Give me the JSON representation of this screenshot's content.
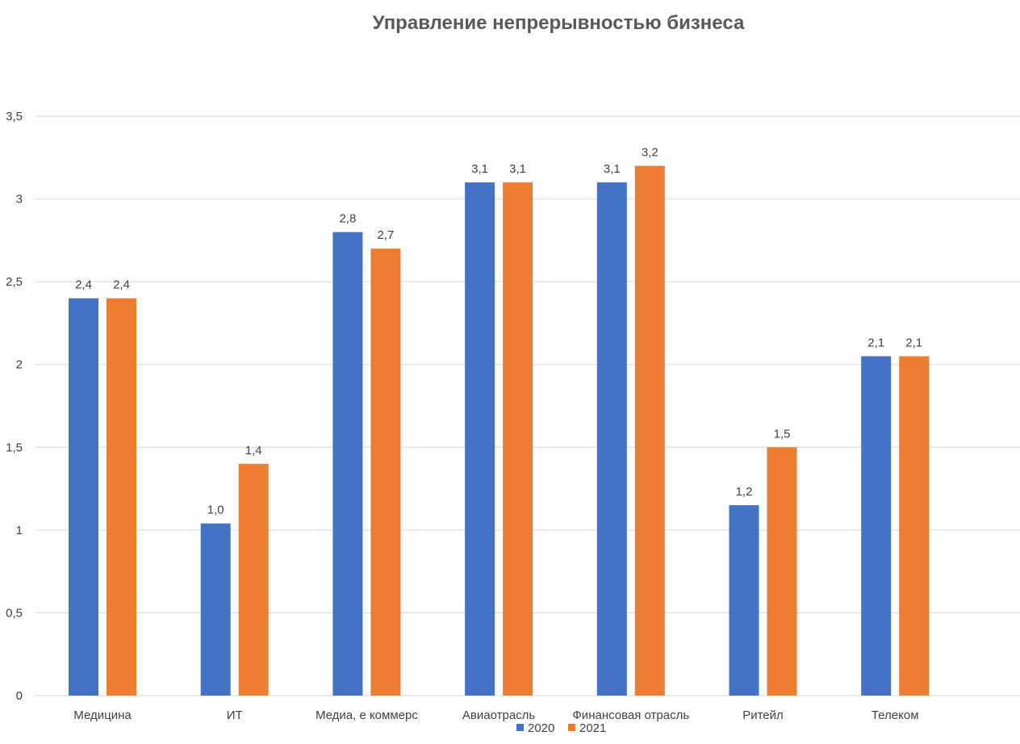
{
  "chart_data": {
    "type": "bar",
    "title": "Управление непрерывностью бизнеса",
    "xlabel": "",
    "ylabel": "",
    "ylim": [
      0,
      3.5
    ],
    "yticks": [
      0,
      0.5,
      1,
      1.5,
      2,
      2.5,
      3,
      3.5
    ],
    "ytick_labels": [
      "0",
      "0,5",
      "1",
      "1,5",
      "2",
      "2,5",
      "3",
      "3,5"
    ],
    "grid": true,
    "legend_position": "bottom",
    "categories": [
      "Медицина",
      "ИТ",
      "Медиа, е коммерс",
      "Авиаотрасль",
      "Финансовая отрасль",
      "Ритейл",
      "Телеком"
    ],
    "series": [
      {
        "name": "2020",
        "color": "#4472c4",
        "values": [
          2.4,
          1.04,
          2.8,
          3.1,
          3.1,
          1.15,
          2.05
        ],
        "labels": [
          "2,4",
          "1,0",
          "2,8",
          "3,1",
          "3,1",
          "1,2",
          "2,1"
        ]
      },
      {
        "name": "2021",
        "color": "#ed7d31",
        "values": [
          2.4,
          1.4,
          2.7,
          3.1,
          3.2,
          1.5,
          2.05
        ],
        "labels": [
          "2,4",
          "1,4",
          "2,7",
          "3,1",
          "3,2",
          "1,5",
          "2,1"
        ]
      }
    ]
  }
}
